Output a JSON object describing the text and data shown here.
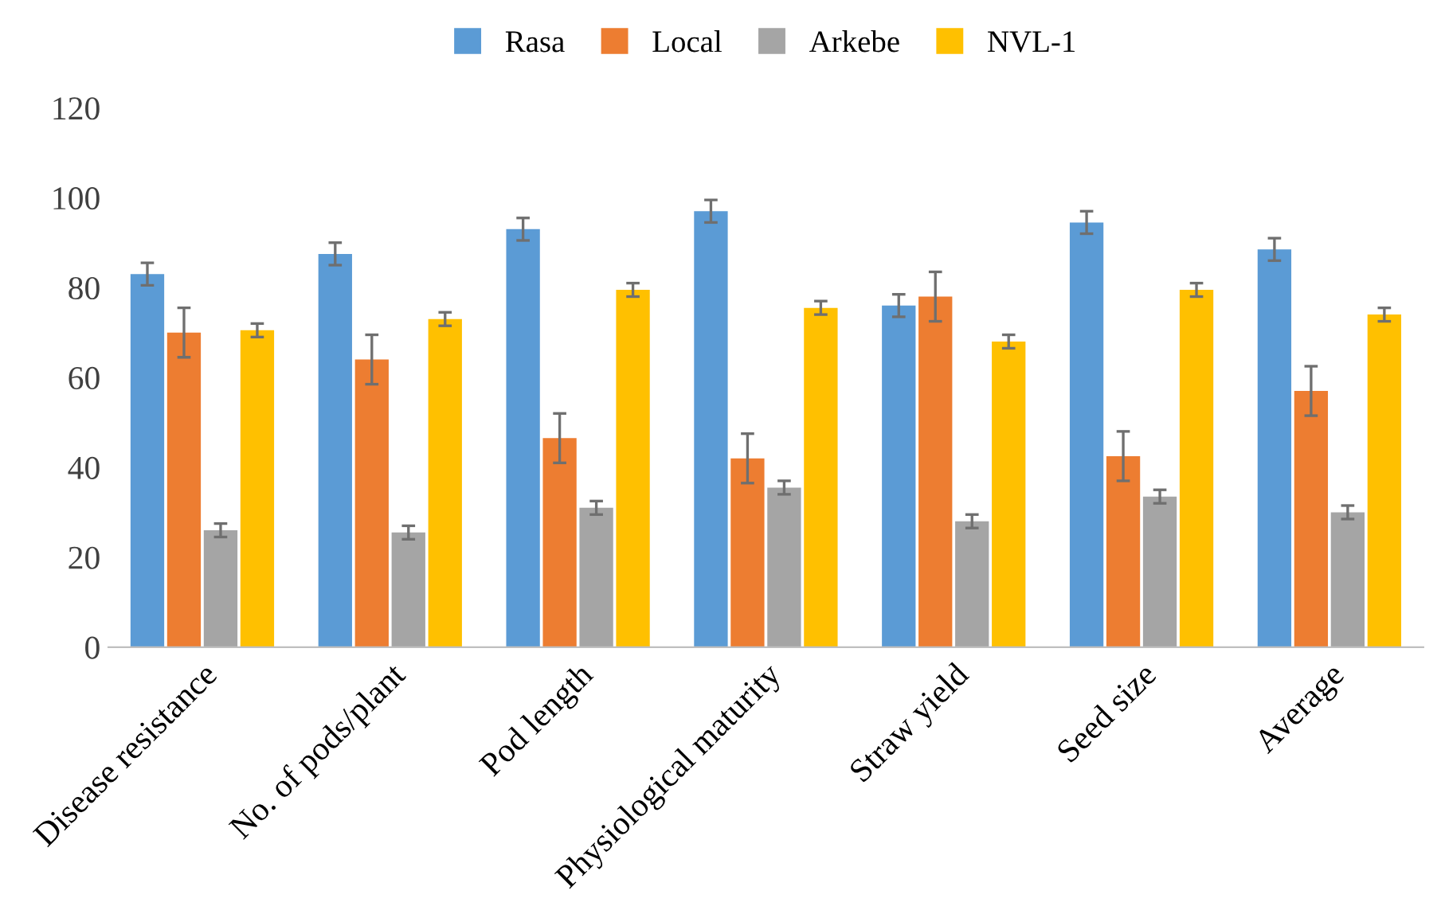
{
  "chart_data": {
    "type": "bar",
    "categories": [
      "Disease resistance",
      "No. of pods/plant",
      "Pod length",
      "Physiological maturity",
      "Straw yield",
      "Seed size",
      "Average"
    ],
    "series": [
      {
        "name": "Rasa",
        "color": "#5b9bd5",
        "values": [
          83,
          87.5,
          93,
          97,
          76,
          94.5,
          88.5
        ],
        "errors": [
          2.5,
          2.5,
          2.5,
          2.5,
          2.5,
          2.5,
          2.5
        ]
      },
      {
        "name": "Local",
        "color": "#ed7d31",
        "values": [
          70,
          64,
          46.5,
          42,
          78,
          42.5,
          57
        ],
        "errors": [
          5.5,
          5.5,
          5.5,
          5.5,
          5.5,
          5.5,
          5.5
        ]
      },
      {
        "name": "Arkebe",
        "color": "#a5a5a5",
        "values": [
          26,
          25.5,
          31,
          35.5,
          28,
          33.5,
          30
        ],
        "errors": [
          1.5,
          1.5,
          1.5,
          1.5,
          1.5,
          1.5,
          1.5
        ]
      },
      {
        "name": "NVL-1",
        "color": "#ffc000",
        "values": [
          70.5,
          73,
          79.5,
          75.5,
          68,
          79.5,
          74
        ],
        "errors": [
          1.5,
          1.5,
          1.5,
          1.5,
          1.5,
          1.5,
          1.5
        ]
      }
    ],
    "ylim": [
      0,
      120
    ],
    "yticks": [
      0,
      20,
      40,
      60,
      80,
      100,
      120
    ],
    "grid": false,
    "legend": "top"
  }
}
